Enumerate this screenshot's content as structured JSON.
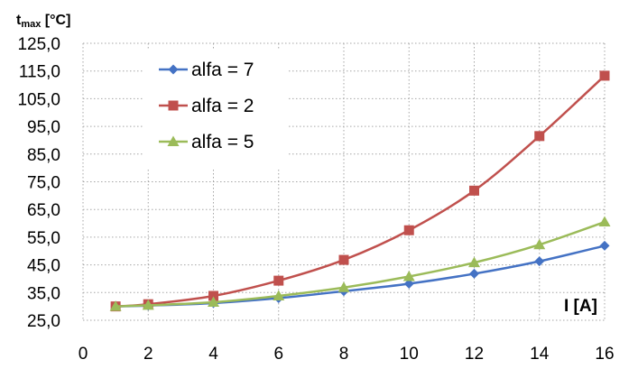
{
  "chart_data": {
    "type": "line",
    "ylabel_main": "t",
    "ylabel_sub": "max",
    "ylabel_unit": " [°C]",
    "xlabel": "I [A]",
    "xlim": [
      0,
      16
    ],
    "ylim": [
      25,
      125
    ],
    "xticks": [
      "0",
      "2",
      "4",
      "6",
      "8",
      "10",
      "12",
      "14",
      "16"
    ],
    "yticks": [
      "25,0",
      "35,0",
      "45,0",
      "55,0",
      "65,0",
      "75,0",
      "85,0",
      "95,0",
      "105,0",
      "115,0",
      "125,0"
    ],
    "grid": true,
    "legend_position": "top-left",
    "x": [
      1,
      2,
      4,
      6,
      8,
      10,
      12,
      14,
      16
    ],
    "series": [
      {
        "name": "alfa = 7",
        "color": "#4472C4",
        "marker": "diamond",
        "values": [
          30.0,
          30.3,
          31.2,
          33.0,
          35.5,
          38.2,
          41.8,
          46.3,
          51.9
        ]
      },
      {
        "name": "alfa = 2",
        "color": "#C0504D",
        "marker": "square",
        "values": [
          30.0,
          30.8,
          33.8,
          39.3,
          46.8,
          57.5,
          71.8,
          91.5,
          113.3
        ]
      },
      {
        "name": "alfa = 5",
        "color": "#9BBB59",
        "marker": "triangle",
        "values": [
          30.0,
          30.4,
          31.5,
          33.8,
          36.8,
          40.8,
          45.8,
          52.3,
          60.5
        ]
      }
    ]
  }
}
